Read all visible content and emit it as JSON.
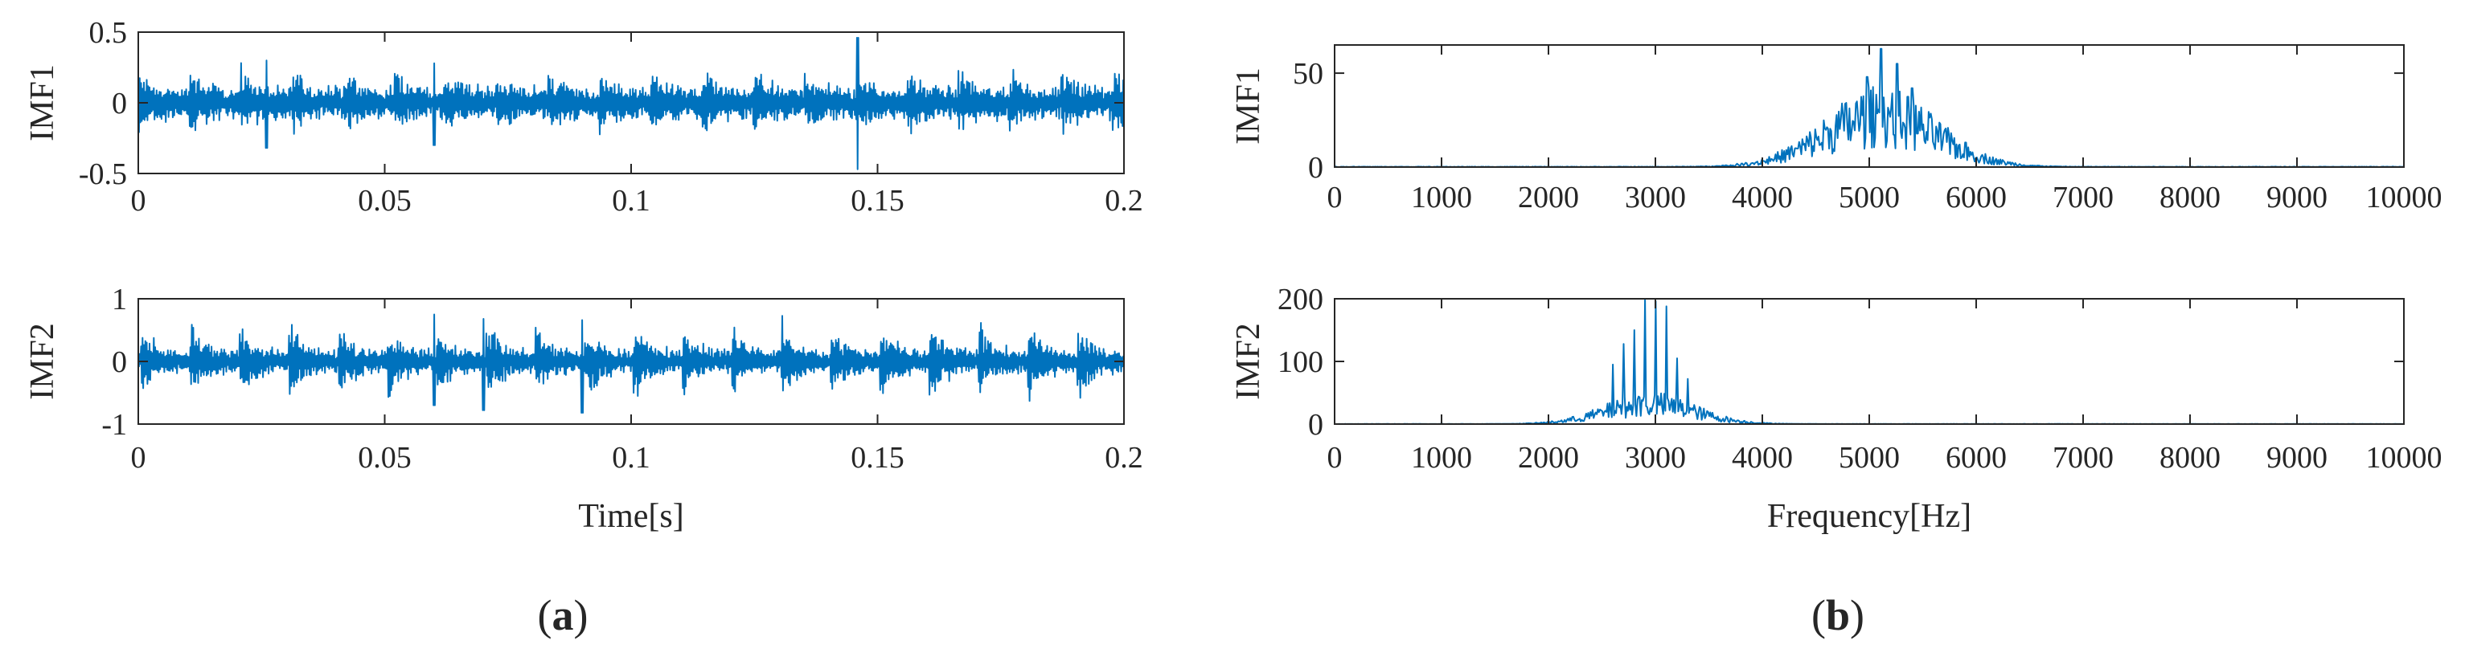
{
  "colors": {
    "signal": "#0072bd",
    "axis": "#262626"
  },
  "panel_labels": [
    {
      "open": "(",
      "letter": "a",
      "close": ")"
    },
    {
      "open": "(",
      "letter": "b",
      "close": ")"
    }
  ],
  "chart_data": [
    {
      "type": "line",
      "panel": "a",
      "series_name": "IMF1",
      "xlabel": "",
      "ylabel": "IMF1",
      "xlim": [
        0,
        0.2
      ],
      "ylim": [
        -0.5,
        0.5
      ],
      "xticks": [
        0,
        0.05,
        0.1,
        0.15,
        0.2
      ],
      "xtick_labels": [
        "0",
        "0.05",
        "0.1",
        "0.15",
        "0.2"
      ],
      "yticks": [
        -0.5,
        0,
        0.5
      ],
      "ytick_labels": [
        "-0.5",
        "0",
        "0.5"
      ],
      "grid": false,
      "signal": {
        "kind": "time",
        "samples": 1400,
        "base_amplitude": 0.09,
        "burst_period": 0.0104,
        "burst_amplitude": 0.16,
        "carrier_hz": 5100,
        "peaks": [
          {
            "t": 0.146,
            "max": 0.46,
            "min": -0.47
          },
          {
            "t": 0.026,
            "max": 0.3,
            "min": -0.32
          },
          {
            "t": 0.06,
            "max": 0.28,
            "min": -0.3
          }
        ]
      }
    },
    {
      "type": "line",
      "panel": "a",
      "series_name": "IMF2",
      "xlabel": "Time[s]",
      "ylabel": "IMF2",
      "xlim": [
        0,
        0.2
      ],
      "ylim": [
        -1,
        1
      ],
      "xticks": [
        0,
        0.05,
        0.1,
        0.15,
        0.2
      ],
      "xtick_labels": [
        "0",
        "0.05",
        "0.1",
        "0.15",
        "0.2"
      ],
      "yticks": [
        -1,
        0,
        1
      ],
      "ytick_labels": [
        "-1",
        "0",
        "1"
      ],
      "grid": false,
      "signal": {
        "kind": "time",
        "samples": 1400,
        "base_amplitude": 0.14,
        "burst_period": 0.01,
        "burst_phase": 0.0005,
        "burst_amplitude": 0.55,
        "carrier_hz": 2950,
        "peaks": [
          {
            "t": 0.06,
            "max": 0.75,
            "min": -0.7
          },
          {
            "t": 0.07,
            "max": 0.68,
            "min": -0.78
          },
          {
            "t": 0.09,
            "max": 0.66,
            "min": -0.82
          }
        ]
      }
    },
    {
      "type": "line",
      "panel": "b",
      "series_name": "IMF1",
      "xlabel": "",
      "ylabel": "IMF1",
      "xlim": [
        0,
        10000
      ],
      "ylim": [
        0,
        65
      ],
      "xticks": [
        0,
        1000,
        2000,
        3000,
        4000,
        5000,
        6000,
        7000,
        8000,
        9000,
        10000
      ],
      "xtick_labels": [
        "0",
        "1000",
        "2000",
        "3000",
        "4000",
        "5000",
        "6000",
        "7000",
        "8000",
        "9000",
        "10000"
      ],
      "yticks": [
        0,
        50
      ],
      "ytick_labels": [
        "0",
        "50"
      ],
      "grid": false,
      "signal": {
        "kind": "spectrum",
        "bins": 1000,
        "center_hz": 5100,
        "spread_hz": 520,
        "envelope_peak": 38,
        "peaks": [
          {
            "f": 5110,
            "value": 63
          },
          {
            "f": 5260,
            "value": 55
          },
          {
            "f": 4980,
            "value": 48
          },
          {
            "f": 5400,
            "value": 42
          }
        ]
      }
    },
    {
      "type": "line",
      "panel": "b",
      "series_name": "IMF2",
      "xlabel": "Frequency[Hz]",
      "ylabel": "IMF2",
      "xlim": [
        0,
        10000
      ],
      "ylim": [
        0,
        200
      ],
      "xticks": [
        0,
        1000,
        2000,
        3000,
        4000,
        5000,
        6000,
        7000,
        8000,
        9000,
        10000
      ],
      "xtick_labels": [
        "0",
        "1000",
        "2000",
        "3000",
        "4000",
        "5000",
        "6000",
        "7000",
        "8000",
        "9000",
        "10000"
      ],
      "yticks": [
        0,
        100,
        200
      ],
      "ytick_labels": [
        "0",
        "100",
        "200"
      ],
      "grid": false,
      "signal": {
        "kind": "spectrum",
        "bins": 1000,
        "center_hz": 2950,
        "spread_hz": 420,
        "envelope_peak": 45,
        "peaks": [
          {
            "f": 2900,
            "value": 200
          },
          {
            "f": 3000,
            "value": 196
          },
          {
            "f": 3100,
            "value": 188
          },
          {
            "f": 2800,
            "value": 150
          },
          {
            "f": 2700,
            "value": 128
          },
          {
            "f": 3200,
            "value": 105
          },
          {
            "f": 2600,
            "value": 95
          },
          {
            "f": 3300,
            "value": 72
          }
        ]
      }
    }
  ]
}
